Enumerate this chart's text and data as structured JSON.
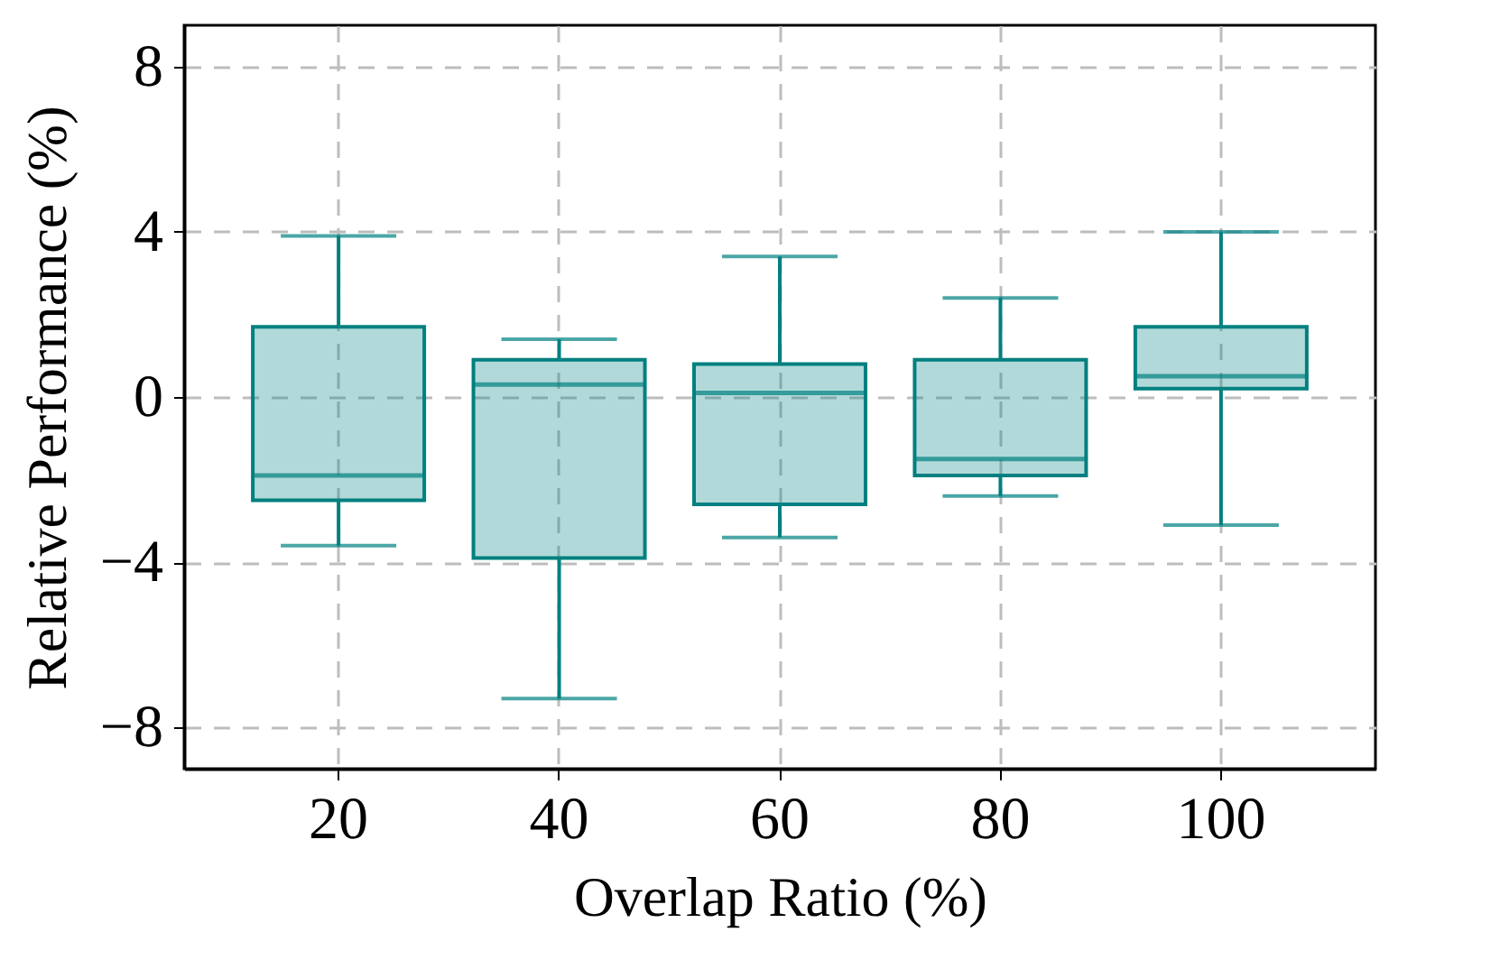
{
  "chart_data": {
    "type": "box",
    "xlabel": "Overlap Ratio (%)",
    "ylabel": "Relative Performance (%)",
    "categories": [
      "20",
      "40",
      "60",
      "80",
      "100"
    ],
    "series": [
      {
        "color": "#008080",
        "boxes": [
          {
            "low": -3.6,
            "q1": -2.5,
            "median": -1.9,
            "q3": 1.7,
            "high": 3.9
          },
          {
            "low": -7.3,
            "q1": -3.9,
            "median": 0.3,
            "q3": 0.9,
            "high": 1.4
          },
          {
            "low": -3.4,
            "q1": -2.6,
            "median": 0.1,
            "q3": 0.8,
            "high": 3.4
          },
          {
            "low": -2.4,
            "q1": -1.9,
            "median": -1.5,
            "q3": 0.9,
            "high": 2.4
          },
          {
            "low": -3.1,
            "q1": 0.2,
            "median": 0.5,
            "q3": 1.7,
            "high": 4.0
          }
        ]
      }
    ],
    "ylim": [
      -9,
      9
    ],
    "yticks": [
      {
        "value": -8,
        "label": "−8"
      },
      {
        "value": -4,
        "label": "−4"
      },
      0,
      4,
      8
    ],
    "grid": true
  }
}
